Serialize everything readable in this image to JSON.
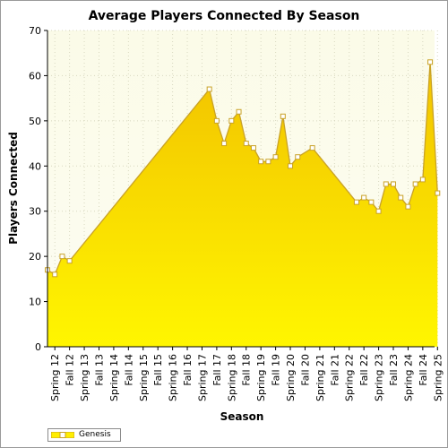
{
  "chart_data": {
    "type": "area",
    "title": "Average Players Connected By Season",
    "xlabel": "Season",
    "ylabel": "Players Connected",
    "ylim": [
      0,
      70
    ],
    "yticks": [
      0,
      10,
      20,
      30,
      40,
      50,
      60,
      70
    ],
    "grid": true,
    "legend_position": "bottom-left",
    "tick_labels": [
      "Spring 12",
      "Fall 12",
      "Spring 13",
      "Fall 13",
      "Spring 14",
      "Fall 14",
      "Spring 15",
      "Fall 15",
      "Spring 16",
      "Fall 16",
      "Spring 17",
      "Fall 17",
      "Spring 18",
      "Fall 18",
      "Spring 19",
      "Fall 19",
      "Spring 20",
      "Fall 20",
      "Spring 21",
      "Fall 21",
      "Spring 22",
      "Fall 22",
      "Spring 23",
      "Fall 23",
      "Spring 24",
      "Fall 24",
      "Spring 25"
    ],
    "x_range": [
      0,
      52.6
    ],
    "series": [
      {
        "name": "Genesis",
        "color": "#ffee00",
        "line_color": "#c9a227",
        "points": [
          {
            "x": 0,
            "y": 17
          },
          {
            "x": 1,
            "y": 16
          },
          {
            "x": 2,
            "y": 20
          },
          {
            "x": 3,
            "y": 19
          },
          {
            "x": 22,
            "y": 57
          },
          {
            "x": 23,
            "y": 50
          },
          {
            "x": 24,
            "y": 45
          },
          {
            "x": 25,
            "y": 50
          },
          {
            "x": 26,
            "y": 52
          },
          {
            "x": 27,
            "y": 45
          },
          {
            "x": 28,
            "y": 44
          },
          {
            "x": 29,
            "y": 41
          },
          {
            "x": 30,
            "y": 41
          },
          {
            "x": 31,
            "y": 42
          },
          {
            "x": 32,
            "y": 51
          },
          {
            "x": 33,
            "y": 40
          },
          {
            "x": 34,
            "y": 42
          },
          {
            "x": 36,
            "y": 44
          },
          {
            "x": 42,
            "y": 32
          },
          {
            "x": 43,
            "y": 33
          },
          {
            "x": 44,
            "y": 32
          },
          {
            "x": 45,
            "y": 30
          },
          {
            "x": 46,
            "y": 36
          },
          {
            "x": 47,
            "y": 36
          },
          {
            "x": 48,
            "y": 33
          },
          {
            "x": 49,
            "y": 31
          },
          {
            "x": 50,
            "y": 36
          },
          {
            "x": 51,
            "y": 37
          },
          {
            "x": 52,
            "y": 63
          },
          {
            "x": 53,
            "y": 34
          }
        ]
      }
    ]
  }
}
